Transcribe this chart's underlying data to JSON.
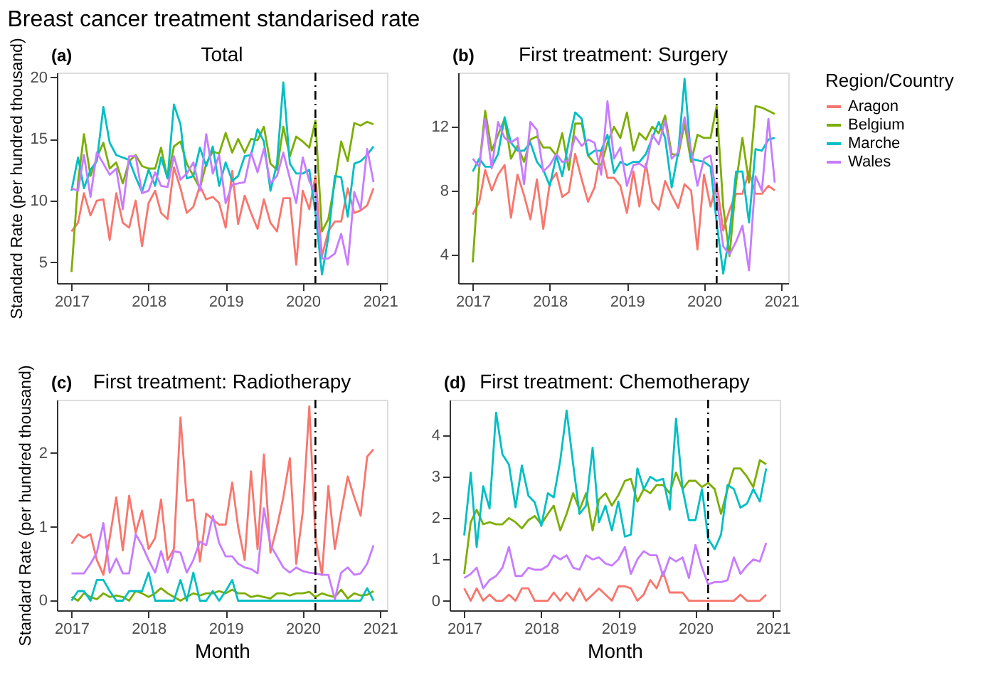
{
  "chart_data": [
    {
      "type": "line",
      "title": "Total",
      "ylabel": "Standard Rate (per hundred thousand)",
      "annotations": [
        "Breast cancer treatment standarised rate",
        "(a)"
      ],
      "x": [
        "2017-01",
        "2017-02",
        "2017-03",
        "2017-04",
        "2017-05",
        "2017-06",
        "2017-07",
        "2017-08",
        "2017-09",
        "2017-10",
        "2017-11",
        "2017-12",
        "2018-01",
        "2018-02",
        "2018-03",
        "2018-04",
        "2018-05",
        "2018-06",
        "2018-07",
        "2018-08",
        "2018-09",
        "2018-10",
        "2018-11",
        "2018-12",
        "2019-01",
        "2019-02",
        "2019-03",
        "2019-04",
        "2019-05",
        "2019-06",
        "2019-07",
        "2019-08",
        "2019-09",
        "2019-10",
        "2019-11",
        "2019-12",
        "2020-01",
        "2020-02",
        "2020-03",
        "2020-04",
        "2020-05",
        "2020-06",
        "2020-07",
        "2020-08",
        "2020-09",
        "2020-10",
        "2020-11",
        "2020-12"
      ],
      "xlim": [
        "2016-10-24",
        "2021-02-03"
      ],
      "xticks": [
        "2017",
        "2018",
        "2019",
        "2020",
        "2021"
      ],
      "ylim": [
        3.3,
        20.4
      ],
      "yticks": [
        5,
        10,
        15,
        20
      ],
      "grid": false,
      "legend": "right",
      "series": [
        {
          "name": "Aragon",
          "color": "#f8766d",
          "values": [
            7.5,
            8.2,
            10.6,
            8.8,
            10.0,
            10.1,
            6.8,
            10.6,
            8.2,
            7.8,
            10.0,
            6.3,
            9.8,
            10.8,
            9.0,
            8.5,
            12.7,
            11.0,
            9.0,
            9.5,
            11.2,
            10.1,
            10.3,
            9.8,
            7.8,
            12.4,
            8.1,
            10.4,
            9.0,
            7.7,
            10.1,
            8.2,
            7.5,
            10.2,
            10.2,
            4.8,
            10.8,
            9.3,
            12.0,
            5.5,
            7.5,
            8.3,
            8.3,
            11.0,
            9.0,
            9.2,
            9.6,
            11.0
          ]
        },
        {
          "name": "Belgium",
          "color": "#7cae00",
          "values": [
            4.2,
            11.5,
            15.4,
            12.0,
            13.5,
            14.7,
            12.6,
            13.1,
            11.4,
            13.2,
            13.7,
            12.8,
            12.6,
            12.6,
            14.3,
            11.8,
            14.4,
            14.8,
            13.0,
            12.0,
            11.0,
            13.0,
            14.0,
            13.8,
            15.5,
            13.9,
            15.0,
            13.9,
            15.0,
            14.9,
            16.0,
            13.0,
            12.5,
            16.0,
            13.6,
            15.2,
            14.8,
            14.3,
            16.5,
            7.5,
            8.5,
            11.5,
            14.8,
            13.2,
            16.3,
            16.1,
            16.4,
            16.2
          ]
        },
        {
          "name": "Marche",
          "color": "#00bfc4",
          "values": [
            10.8,
            13.5,
            11.0,
            12.5,
            13.2,
            17.6,
            14.7,
            13.7,
            13.5,
            13.3,
            11.9,
            10.7,
            12.5,
            11.2,
            13.5,
            11.8,
            17.8,
            16.2,
            11.8,
            12.0,
            14.3,
            12.8,
            14.4,
            11.2,
            13.1,
            11.6,
            12.0,
            13.6,
            13.7,
            15.8,
            14.8,
            10.8,
            13.0,
            19.6,
            13.0,
            12.2,
            12.2,
            12.5,
            9.0,
            4.0,
            7.0,
            12.0,
            11.9,
            8.7,
            13.0,
            13.2,
            13.7,
            14.4
          ]
        },
        {
          "name": "Wales",
          "color": "#c77cff",
          "values": [
            11.0,
            10.8,
            13.7,
            10.3,
            13.9,
            13.0,
            12.1,
            12.6,
            9.3,
            13.6,
            13.6,
            10.6,
            10.8,
            12.3,
            11.2,
            11.1,
            13.6,
            11.7,
            12.2,
            13.1,
            10.8,
            15.4,
            12.2,
            13.7,
            9.8,
            11.3,
            11.4,
            11.5,
            13.9,
            12.3,
            14.2,
            11.4,
            12.0,
            13.9,
            11.8,
            9.8,
            13.5,
            11.6,
            10.6,
            5.3,
            5.3,
            5.7,
            7.3,
            4.8,
            10.7,
            9.3,
            14.2,
            11.5
          ]
        }
      ],
      "ref_lines": [
        {
          "axis": "x",
          "value": "2020-03",
          "color": "#000000",
          "line_style": "dashed"
        }
      ]
    },
    {
      "type": "line",
      "title": "First treatment: Surgery",
      "annotations": [
        "(b)"
      ],
      "legend": "right",
      "legend_title": "Region/Country",
      "x": [
        "2017-01",
        "2017-02",
        "2017-03",
        "2017-04",
        "2017-05",
        "2017-06",
        "2017-07",
        "2017-08",
        "2017-09",
        "2017-10",
        "2017-11",
        "2017-12",
        "2018-01",
        "2018-02",
        "2018-03",
        "2018-04",
        "2018-05",
        "2018-06",
        "2018-07",
        "2018-08",
        "2018-09",
        "2018-10",
        "2018-11",
        "2018-12",
        "2019-01",
        "2019-02",
        "2019-03",
        "2019-04",
        "2019-05",
        "2019-06",
        "2019-07",
        "2019-08",
        "2019-09",
        "2019-10",
        "2019-11",
        "2019-12",
        "2020-01",
        "2020-02",
        "2020-03",
        "2020-04",
        "2020-05",
        "2020-06",
        "2020-07",
        "2020-08",
        "2020-09",
        "2020-10",
        "2020-11",
        "2020-12"
      ],
      "xlim": [
        "2016-10-24",
        "2021-02-03"
      ],
      "xticks": [
        "2017",
        "2018",
        "2019",
        "2020",
        "2021"
      ],
      "ylim": [
        2.2,
        15.4
      ],
      "yticks": [
        4,
        8,
        12
      ],
      "grid": false,
      "series": [
        {
          "name": "Aragon",
          "color": "#f8766d",
          "values": [
            6.5,
            7.3,
            9.3,
            8.0,
            9.0,
            9.6,
            6.3,
            9.0,
            7.7,
            6.2,
            8.7,
            5.6,
            8.5,
            9.1,
            7.6,
            7.9,
            10.3,
            8.7,
            7.3,
            8.2,
            10.5,
            8.8,
            8.8,
            8.3,
            6.6,
            9.2,
            7.0,
            9.7,
            7.3,
            6.8,
            8.6,
            7.7,
            6.9,
            8.4,
            8.0,
            4.3,
            9.0,
            7.0,
            8.5,
            5.5,
            6.8,
            7.8,
            7.8,
            9.2,
            7.8,
            7.8,
            8.3,
            8.0
          ]
        },
        {
          "name": "Belgium",
          "color": "#7cae00",
          "values": [
            3.5,
            9.5,
            13.0,
            10.5,
            11.5,
            12.5,
            10.0,
            10.8,
            9.8,
            11.2,
            11.4,
            10.7,
            10.7,
            10.2,
            11.6,
            9.3,
            12.2,
            12.2,
            10.2,
            9.7,
            9.6,
            11.0,
            12.0,
            11.3,
            12.9,
            10.5,
            11.6,
            11.2,
            12.0,
            11.6,
            12.7,
            10.3,
            10.2,
            12.2,
            9.8,
            11.5,
            11.3,
            11.3,
            13.3,
            7.0,
            3.9,
            8.5,
            11.3,
            8.5,
            13.3,
            13.2,
            13.0,
            12.8
          ]
        },
        {
          "name": "Marche",
          "color": "#00bfc4",
          "values": [
            9.2,
            10.0,
            9.5,
            9.5,
            10.3,
            12.6,
            11.0,
            10.5,
            10.5,
            11.0,
            9.8,
            9.3,
            8.3,
            10.2,
            8.9,
            11.1,
            12.9,
            12.5,
            10.2,
            10.5,
            10.5,
            11.5,
            9.1,
            9.8,
            9.6,
            9.8,
            9.8,
            10.3,
            11.3,
            12.3,
            11.3,
            8.2,
            10.4,
            15.0,
            10.0,
            9.9,
            9.8,
            9.5,
            6.0,
            2.8,
            5.3,
            9.2,
            9.2,
            6.0,
            10.6,
            10.5,
            11.2,
            11.3
          ]
        },
        {
          "name": "Wales",
          "color": "#c77cff",
          "values": [
            10.0,
            9.5,
            12.5,
            9.4,
            12.3,
            11.3,
            11.0,
            11.3,
            8.4,
            12.3,
            11.8,
            9.2,
            9.6,
            10.3,
            9.8,
            9.9,
            11.4,
            10.8,
            11.2,
            11.0,
            9.0,
            13.6,
            10.0,
            10.7,
            8.3,
            9.6,
            9.7,
            9.4,
            11.5,
            10.9,
            12.4,
            10.0,
            10.4,
            12.6,
            10.5,
            8.3,
            10.0,
            10.2,
            7.5,
            4.5,
            4.0,
            4.8,
            5.8,
            3.0,
            8.9,
            8.0,
            12.5,
            8.5
          ]
        }
      ],
      "ref_lines": [
        {
          "axis": "x",
          "value": "2020-03",
          "color": "#000000",
          "line_style": "dashed"
        }
      ]
    },
    {
      "type": "line",
      "title": "First treatment: Radiotherapy",
      "xlabel": "Month",
      "ylabel": "Standard Rate (per hundred thousand)",
      "annotations": [
        "(c)"
      ],
      "x": [
        "2017-01",
        "2017-02",
        "2017-03",
        "2017-04",
        "2017-05",
        "2017-06",
        "2017-07",
        "2017-08",
        "2017-09",
        "2017-10",
        "2017-11",
        "2017-12",
        "2018-01",
        "2018-02",
        "2018-03",
        "2018-04",
        "2018-05",
        "2018-06",
        "2018-07",
        "2018-08",
        "2018-09",
        "2018-10",
        "2018-11",
        "2018-12",
        "2019-01",
        "2019-02",
        "2019-03",
        "2019-04",
        "2019-05",
        "2019-06",
        "2019-07",
        "2019-08",
        "2019-09",
        "2019-10",
        "2019-11",
        "2019-12",
        "2020-01",
        "2020-02",
        "2020-03",
        "2020-04",
        "2020-05",
        "2020-06",
        "2020-07",
        "2020-08",
        "2020-09",
        "2020-10",
        "2020-11",
        "2020-12"
      ],
      "xlim": [
        "2016-10-24",
        "2021-02-03"
      ],
      "xticks": [
        "2017",
        "2018",
        "2019",
        "2020",
        "2021"
      ],
      "ylim": [
        -0.13,
        2.72
      ],
      "yticks": [
        0,
        1,
        2
      ],
      "grid": false,
      "legend": "right",
      "series": [
        {
          "name": "Aragon",
          "color": "#f8766d",
          "values": [
            0.77,
            0.9,
            0.85,
            0.9,
            0.55,
            0.35,
            0.85,
            1.4,
            0.68,
            1.42,
            0.92,
            1.22,
            0.7,
            0.85,
            1.37,
            0.55,
            0.7,
            2.48,
            1.35,
            1.37,
            0.53,
            1.18,
            1.1,
            1.03,
            1.03,
            1.6,
            1.0,
            0.55,
            1.75,
            0.7,
            1.98,
            0.65,
            1.0,
            1.4,
            1.93,
            0.5,
            1.2,
            2.63,
            0.85,
            0.35,
            1.55,
            0.7,
            1.2,
            1.68,
            1.4,
            1.15,
            1.95,
            2.05
          ]
        },
        {
          "name": "Belgium",
          "color": "#7cae00",
          "values": [
            0.05,
            0.0,
            0.1,
            0.05,
            0.02,
            0.1,
            0.05,
            0.07,
            0.05,
            0.0,
            0.13,
            0.1,
            0.05,
            0.1,
            0.17,
            0.1,
            0.05,
            0.0,
            0.05,
            0.1,
            0.07,
            0.1,
            0.1,
            0.13,
            0.1,
            0.15,
            0.1,
            0.1,
            0.05,
            0.07,
            0.05,
            0.03,
            0.1,
            0.1,
            0.07,
            0.1,
            0.1,
            0.12,
            0.05,
            0.1,
            0.07,
            0.05,
            0.15,
            0.03,
            0.1,
            0.07,
            0.08,
            0.13
          ]
        },
        {
          "name": "Marche",
          "color": "#00bfc4",
          "values": [
            0.0,
            0.13,
            0.13,
            0.0,
            0.28,
            0.28,
            0.13,
            0.0,
            0.0,
            0.13,
            0.13,
            0.13,
            0.38,
            0.0,
            0.0,
            0.0,
            0.0,
            0.28,
            0.0,
            0.38,
            0.0,
            0.0,
            0.13,
            0.0,
            0.13,
            0.28,
            0.0,
            0.0,
            0.0,
            0.0,
            0.0,
            0.0,
            0.0,
            0.0,
            0.0,
            0.0,
            0.0,
            0.0,
            0.0,
            0.0,
            0.0,
            0.0,
            0.0,
            0.0,
            0.0,
            0.0,
            0.17,
            0.0
          ]
        },
        {
          "name": "Wales",
          "color": "#c77cff",
          "values": [
            0.37,
            0.37,
            0.37,
            0.5,
            0.65,
            1.05,
            0.38,
            0.57,
            0.37,
            0.37,
            0.9,
            0.75,
            0.55,
            0.38,
            0.67,
            0.38,
            0.67,
            0.65,
            0.38,
            0.55,
            0.8,
            0.75,
            1.15,
            0.78,
            0.6,
            0.6,
            0.5,
            0.45,
            0.43,
            0.37,
            1.25,
            0.75,
            0.6,
            0.45,
            0.38,
            0.45,
            0.4,
            0.38,
            0.37,
            0.35,
            0.35,
            0.02,
            0.38,
            0.45,
            0.35,
            0.37,
            0.5,
            0.75
          ]
        }
      ],
      "ref_lines": [
        {
          "axis": "x",
          "value": "2020-03",
          "color": "#000000",
          "line_style": "dashed"
        }
      ]
    },
    {
      "type": "line",
      "title": "First treatment: Chemotherapy",
      "xlabel": "Month",
      "annotations": [
        "(d)"
      ],
      "x": [
        "2017-01",
        "2017-02",
        "2017-03",
        "2017-04",
        "2017-05",
        "2017-06",
        "2017-07",
        "2017-08",
        "2017-09",
        "2017-10",
        "2017-11",
        "2017-12",
        "2018-01",
        "2018-02",
        "2018-03",
        "2018-04",
        "2018-05",
        "2018-06",
        "2018-07",
        "2018-08",
        "2018-09",
        "2018-10",
        "2018-11",
        "2018-12",
        "2019-01",
        "2019-02",
        "2019-03",
        "2019-04",
        "2019-05",
        "2019-06",
        "2019-07",
        "2019-08",
        "2019-09",
        "2019-10",
        "2019-11",
        "2019-12",
        "2020-01",
        "2020-02",
        "2020-03",
        "2020-04",
        "2020-05",
        "2020-06",
        "2020-07",
        "2020-08",
        "2020-09",
        "2020-10",
        "2020-11",
        "2020-12"
      ],
      "xlim": [
        "2016-10-24",
        "2021-02-03"
      ],
      "xticks": [
        "2017",
        "2018",
        "2019",
        "2020",
        "2021"
      ],
      "ylim": [
        -0.23,
        4.86
      ],
      "yticks": [
        0,
        1,
        2,
        3,
        4
      ],
      "grid": false,
      "legend": "right",
      "series": [
        {
          "name": "Aragon",
          "color": "#f8766d",
          "values": [
            0.3,
            0.0,
            0.3,
            0.0,
            0.15,
            0.0,
            0.0,
            0.15,
            0.0,
            0.3,
            0.3,
            0.0,
            0.0,
            0.0,
            0.2,
            0.0,
            0.2,
            0.0,
            0.3,
            0.0,
            0.15,
            0.3,
            0.15,
            0.0,
            0.35,
            0.35,
            0.3,
            0.0,
            0.15,
            0.5,
            0.3,
            0.7,
            0.2,
            0.2,
            0.2,
            0.0,
            0.0,
            0.0,
            0.0,
            0.0,
            0.0,
            0.0,
            0.0,
            0.15,
            0.0,
            0.0,
            0.0,
            0.15
          ]
        },
        {
          "name": "Belgium",
          "color": "#7cae00",
          "values": [
            0.65,
            1.9,
            2.2,
            1.85,
            1.9,
            1.85,
            1.85,
            2.0,
            1.9,
            1.75,
            1.95,
            2.05,
            1.85,
            2.1,
            2.3,
            1.7,
            2.1,
            2.6,
            2.2,
            2.6,
            1.7,
            2.45,
            2.6,
            2.3,
            2.55,
            2.9,
            2.95,
            2.4,
            2.7,
            2.6,
            2.8,
            2.8,
            2.6,
            3.1,
            2.7,
            2.9,
            2.9,
            2.75,
            2.85,
            2.7,
            2.1,
            2.7,
            3.2,
            3.2,
            3.0,
            2.75,
            3.4,
            3.3
          ]
        },
        {
          "name": "Marche",
          "color": "#00bfc4",
          "values": [
            1.58,
            3.1,
            1.3,
            2.77,
            2.23,
            4.55,
            3.54,
            3.29,
            2.26,
            3.27,
            2.54,
            2.38,
            1.81,
            2.6,
            2.5,
            3.4,
            4.6,
            3.3,
            2.1,
            2.3,
            3.7,
            1.9,
            2.3,
            1.7,
            2.4,
            1.55,
            1.6,
            3.2,
            2.7,
            3.0,
            2.9,
            2.95,
            2.2,
            4.4,
            2.7,
            1.95,
            1.95,
            2.7,
            1.5,
            1.25,
            1.6,
            2.8,
            2.7,
            2.25,
            2.35,
            2.7,
            2.4,
            3.2
          ]
        },
        {
          "name": "Wales",
          "color": "#c77cff",
          "values": [
            0.55,
            0.65,
            0.8,
            0.3,
            0.5,
            0.6,
            0.8,
            1.3,
            0.6,
            0.6,
            0.8,
            0.75,
            0.75,
            0.85,
            1.1,
            1.0,
            1.1,
            0.8,
            0.75,
            1.1,
            1.0,
            1.05,
            0.9,
            0.85,
            1.0,
            1.3,
            0.65,
            1.0,
            1.2,
            1.1,
            1.1,
            0.6,
            1.05,
            0.95,
            1.05,
            0.55,
            1.35,
            0.8,
            0.4,
            0.45,
            0.45,
            0.5,
            1.05,
            0.65,
            0.85,
            1.0,
            0.95,
            1.4
          ]
        }
      ],
      "ref_lines": [
        {
          "axis": "x",
          "value": "2020-03",
          "color": "#000000",
          "line_style": "dashed"
        }
      ]
    }
  ]
}
